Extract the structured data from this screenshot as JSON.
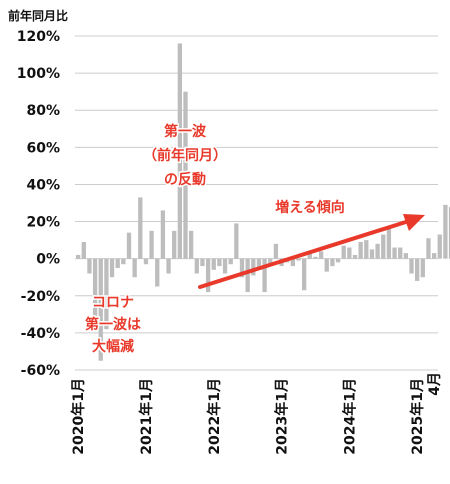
{
  "chart_data": {
    "type": "bar",
    "ylabel": "前年同月比",
    "ylim": [
      -60,
      120
    ],
    "yticks": [
      -60,
      -40,
      -20,
      0,
      20,
      40,
      60,
      80,
      100,
      120
    ],
    "ytick_labels": [
      "-60%",
      "-40%",
      "-20%",
      "0%",
      "20%",
      "40%",
      "60%",
      "80%",
      "100%",
      "120%"
    ],
    "grid": "horizontal",
    "bar_color": "#bdbdbd",
    "grid_color": "#cccccc",
    "annotation_color": "#e8392b",
    "xtick_labels": [
      {
        "index": 0,
        "text": "2020年1月"
      },
      {
        "index": 12,
        "text": "2021年1月"
      },
      {
        "index": 24,
        "text": "2022年1月"
      },
      {
        "index": 36,
        "text": "2023年1月"
      },
      {
        "index": 48,
        "text": "2024年1月"
      },
      {
        "index": 60,
        "text": "2025年1月"
      },
      {
        "index": 63,
        "text": "4月"
      }
    ],
    "values": [
      2,
      9,
      -8,
      -36,
      -55,
      -38,
      -10,
      -5,
      -3,
      14,
      -10,
      33,
      -3,
      15,
      -15,
      26,
      -8,
      15,
      116,
      90,
      15,
      -8,
      -4,
      -18,
      -6,
      -4,
      -8,
      -3,
      19,
      -10,
      -18,
      -9,
      -5,
      -18,
      -3,
      8,
      -4,
      -2,
      -4,
      -1,
      -17,
      3,
      1,
      4,
      -7,
      -4,
      -2,
      7,
      6,
      2,
      9,
      10,
      5,
      8,
      13,
      16,
      6,
      6,
      3,
      -8,
      -12,
      -10,
      11,
      3,
      13,
      29,
      28,
      19
    ],
    "annotations": [
      {
        "lines": [
          "第一波",
          "（前年同月）",
          "の反動"
        ]
      },
      {
        "lines": [
          "コロナ",
          "第一波は",
          "大幅減"
        ]
      },
      {
        "lines": [
          "増える傾向"
        ]
      }
    ]
  }
}
